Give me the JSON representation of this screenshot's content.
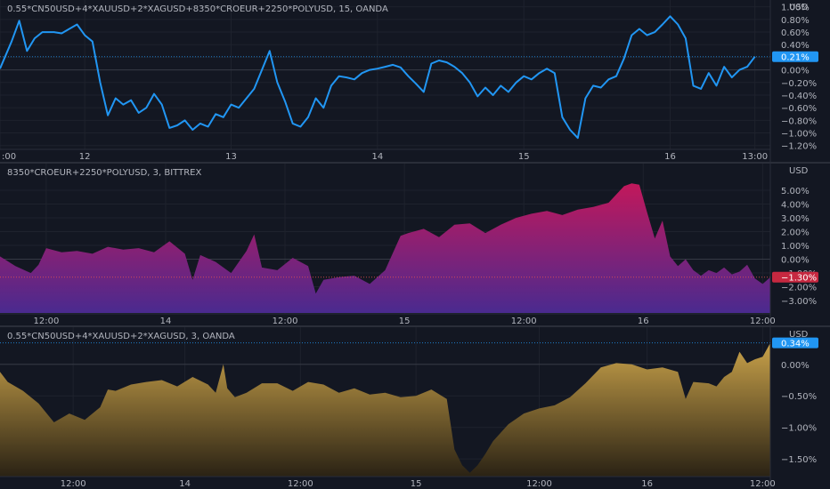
{
  "theme": {
    "background": "#131722",
    "grid": "#1e222d",
    "text": "#b2b5be",
    "separator": "#2a2e39",
    "zero_line": "#363a45"
  },
  "chart_data": [
    {
      "type": "line",
      "title": "0.55*CN50USD+4*XAUUSD+2*XAGUSD+8350*CROEUR+2250*POLYUSD, 15, OANDA",
      "currency_label": "USD",
      "ylabel": "",
      "ylim": [
        -1.26,
        1.08
      ],
      "yticks": [
        1.0,
        0.8,
        0.6,
        0.4,
        0.2,
        0.0,
        -0.2,
        -0.4,
        -0.6,
        -0.8,
        -1.0,
        -1.2
      ],
      "ytick_labels": [
        "1.00%",
        "0.80%",
        "0.60%",
        "0.40%",
        "0.20%",
        "0.00%",
        "−0.20%",
        "−0.40%",
        "−0.60%",
        "−0.80%",
        "−1.00%",
        "−1.20%"
      ],
      "xlim": [
        0,
        100
      ],
      "xticks": [
        0,
        11,
        30,
        49,
        68,
        87,
        98
      ],
      "xtick_labels": [
        ":00",
        "12",
        "13",
        "14",
        "15",
        "16",
        "13:00"
      ],
      "last_value_label": "0.21%",
      "last_value": 0.21,
      "line_color": "#2196f3",
      "series": [
        {
          "x": [
            0,
            1.5,
            2.5,
            3.5,
            4.5,
            5.5,
            7,
            8,
            9,
            10,
            11,
            12,
            13,
            14,
            15,
            16,
            17,
            18,
            19,
            20,
            21,
            22,
            23,
            24,
            25,
            26,
            27,
            28,
            29,
            30,
            31,
            32,
            33,
            34,
            35,
            36,
            37,
            38,
            39,
            40,
            41,
            42,
            43,
            44,
            45,
            46,
            47,
            48,
            49,
            50,
            51,
            52,
            53,
            54,
            55,
            56,
            57,
            58,
            59,
            60,
            61,
            62,
            63,
            64,
            65,
            66,
            67,
            68,
            69,
            70,
            71,
            72,
            73,
            74,
            75,
            76,
            77,
            78,
            79,
            80,
            81,
            82,
            83,
            84,
            85,
            86,
            87,
            88,
            89,
            90,
            91,
            92,
            93,
            94,
            95,
            96,
            97,
            98
          ],
          "y": [
            0.02,
            0.45,
            0.78,
            0.3,
            0.5,
            0.6,
            0.6,
            0.58,
            0.65,
            0.72,
            0.55,
            0.45,
            -0.2,
            -0.72,
            -0.45,
            -0.55,
            -0.48,
            -0.68,
            -0.6,
            -0.38,
            -0.55,
            -0.92,
            -0.88,
            -0.8,
            -0.95,
            -0.85,
            -0.9,
            -0.7,
            -0.75,
            -0.55,
            -0.6,
            -0.45,
            -0.3,
            0.0,
            0.3,
            -0.2,
            -0.5,
            -0.85,
            -0.9,
            -0.75,
            -0.45,
            -0.6,
            -0.25,
            -0.1,
            -0.12,
            -0.15,
            -0.05,
            0.0,
            0.02,
            0.05,
            0.08,
            0.04,
            -0.1,
            -0.22,
            -0.35,
            0.1,
            0.15,
            0.12,
            0.05,
            -0.05,
            -0.2,
            -0.42,
            -0.28,
            -0.4,
            -0.25,
            -0.35,
            -0.2,
            -0.1,
            -0.15,
            -0.05,
            0.02,
            -0.05,
            -0.75,
            -0.95,
            -1.08,
            -0.45,
            -0.25,
            -0.28,
            -0.15,
            -0.1,
            0.18,
            0.55,
            0.65,
            0.55,
            0.6,
            0.72,
            0.85,
            0.72,
            0.5,
            -0.25,
            -0.3,
            -0.05,
            -0.25,
            0.05,
            -0.12,
            0.0,
            0.05,
            0.21
          ]
        }
      ]
    },
    {
      "type": "area",
      "title": "8350*CROEUR+2250*POLYUSD, 3, BITTREX",
      "currency_label": "USD",
      "ylabel": "",
      "ylim": [
        -3.9,
        6.1
      ],
      "yticks": [
        5,
        4,
        3,
        2,
        1,
        0,
        -1,
        -2,
        -3
      ],
      "ytick_labels": [
        "5.00%",
        "4.00%",
        "3.00%",
        "2.00%",
        "1.00%",
        "0.00%",
        "−1.00%",
        "−2.00%",
        "−3.00%"
      ],
      "xlim": [
        0,
        100
      ],
      "xticks": [
        6,
        21.5,
        37,
        52.5,
        68,
        83.5,
        99
      ],
      "xtick_labels": [
        "12:00",
        "14",
        "12:00",
        "15",
        "12:00",
        "16",
        "12:00"
      ],
      "last_value_label": "−1.30%",
      "last_value": -1.3,
      "fill_top_color": "#c2185b",
      "fill_bottom_color": "#4a2a8f",
      "series": [
        {
          "x": [
            0,
            2,
            4,
            5,
            6,
            8,
            10,
            12,
            14,
            16,
            18,
            20,
            22,
            24,
            25,
            26,
            28,
            30,
            32,
            33,
            34,
            36,
            38,
            40,
            41,
            42,
            44,
            46,
            48,
            50,
            52,
            53,
            55,
            57,
            59,
            61,
            63,
            65,
            67,
            69,
            71,
            73,
            75,
            77,
            79,
            81,
            82,
            83,
            84,
            85,
            86,
            87,
            88,
            89,
            90,
            91,
            92,
            93,
            94,
            95,
            96,
            97,
            98,
            99,
            100
          ],
          "y": [
            0.2,
            -0.5,
            -1.0,
            -0.4,
            0.8,
            0.5,
            0.6,
            0.4,
            0.9,
            0.7,
            0.8,
            0.5,
            1.3,
            0.4,
            -1.5,
            0.3,
            -0.2,
            -1.0,
            0.6,
            1.8,
            -0.6,
            -0.8,
            0.1,
            -0.5,
            -2.5,
            -1.5,
            -1.3,
            -1.2,
            -1.8,
            -0.8,
            1.7,
            1.9,
            2.2,
            1.6,
            2.5,
            2.6,
            1.9,
            2.5,
            3.0,
            3.3,
            3.5,
            3.2,
            3.6,
            3.8,
            4.1,
            5.3,
            5.5,
            5.4,
            3.4,
            1.5,
            2.8,
            0.2,
            -0.5,
            0.0,
            -0.8,
            -1.2,
            -0.8,
            -1.0,
            -0.6,
            -1.1,
            -0.9,
            -0.4,
            -1.4,
            -1.8,
            -1.3
          ]
        }
      ]
    },
    {
      "type": "area",
      "title": "0.55*CN50USD+4*XAUUSD+2*XAGUSD, 3, OANDA",
      "currency_label": "USD",
      "ylabel": "",
      "ylim": [
        -1.78,
        0.42
      ],
      "yticks": [
        0.0,
        -0.5,
        -1.0,
        -1.5
      ],
      "ytick_labels": [
        "0.00%",
        "−0.50%",
        "−1.00%",
        "−1.50%"
      ],
      "xlim": [
        0,
        100
      ],
      "xticks": [
        9.5,
        24,
        39,
        54,
        70,
        84,
        99
      ],
      "xtick_labels": [
        "12:00",
        "14",
        "12:00",
        "15",
        "12:00",
        "16",
        "12:00"
      ],
      "last_value_label": "0.34%",
      "last_value": 0.34,
      "fill_top_color": "#c9a24a",
      "fill_bottom_color": "#2a2214",
      "series": [
        {
          "x": [
            0,
            1,
            3,
            5,
            7,
            9,
            11,
            13,
            14,
            15,
            17,
            19,
            21,
            23,
            25,
            27,
            28,
            29,
            29.5,
            30.5,
            32,
            34,
            36,
            38,
            40,
            42,
            44,
            46,
            48,
            50,
            52,
            54,
            56,
            58,
            59,
            60,
            61,
            62,
            63,
            64,
            66,
            68,
            70,
            72,
            74,
            76,
            78,
            80,
            82,
            84,
            86,
            88,
            89,
            90,
            92,
            93,
            94,
            95,
            96,
            97,
            98,
            99,
            100
          ],
          "y": [
            -0.12,
            -0.28,
            -0.42,
            -0.62,
            -0.92,
            -0.78,
            -0.88,
            -0.68,
            -0.4,
            -0.42,
            -0.32,
            -0.28,
            -0.25,
            -0.35,
            -0.2,
            -0.32,
            -0.45,
            0.0,
            -0.38,
            -0.52,
            -0.45,
            -0.3,
            -0.3,
            -0.42,
            -0.28,
            -0.32,
            -0.45,
            -0.38,
            -0.48,
            -0.45,
            -0.52,
            -0.5,
            -0.4,
            -0.55,
            -1.35,
            -1.6,
            -1.72,
            -1.6,
            -1.42,
            -1.22,
            -0.95,
            -0.78,
            -0.7,
            -0.65,
            -0.52,
            -0.3,
            -0.05,
            0.02,
            0.0,
            -0.08,
            -0.05,
            -0.12,
            -0.55,
            -0.28,
            -0.3,
            -0.35,
            -0.2,
            -0.12,
            0.2,
            0.02,
            0.08,
            0.12,
            0.34
          ]
        }
      ]
    }
  ]
}
